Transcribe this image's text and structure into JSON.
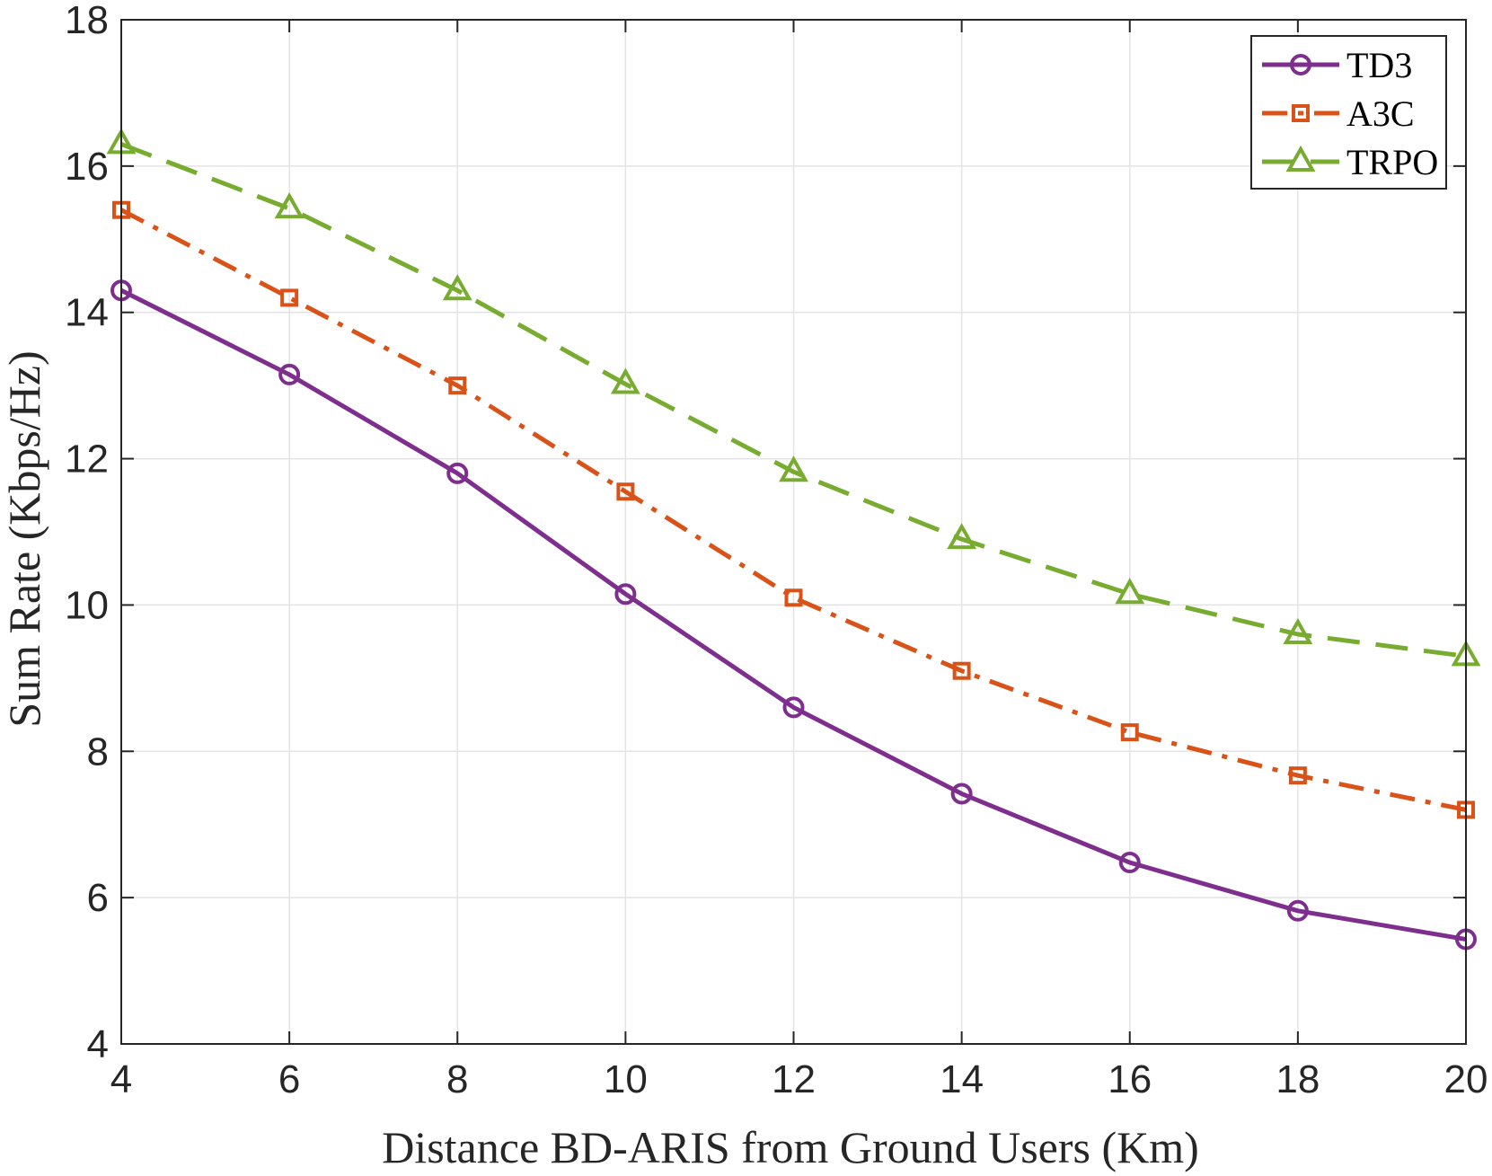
{
  "chart_data": {
    "type": "line",
    "title": "",
    "xlabel": "Distance BD-ARIS  from Ground Users (Km)",
    "ylabel": "Sum Rate (Kbps/Hz)",
    "xlim": [
      4,
      20
    ],
    "ylim": [
      4,
      18
    ],
    "xticks": [
      4,
      6,
      8,
      10,
      12,
      14,
      16,
      18,
      20
    ],
    "yticks": [
      4,
      6,
      8,
      10,
      12,
      14,
      16,
      18
    ],
    "grid": true,
    "legend_position": "top-right",
    "x": [
      4,
      6,
      8,
      10,
      12,
      14,
      16,
      18,
      20
    ],
    "series": [
      {
        "name": "TD3",
        "color": "#7E2F8E",
        "marker": "circle",
        "dash": "solid",
        "values": [
          14.3,
          13.15,
          11.8,
          10.15,
          8.6,
          7.42,
          6.48,
          5.82,
          5.43
        ]
      },
      {
        "name": "A3C",
        "color": "#D95319",
        "marker": "square",
        "dash": "dashdot",
        "values": [
          15.4,
          14.2,
          13.0,
          11.55,
          10.1,
          9.1,
          8.26,
          7.67,
          7.2
        ]
      },
      {
        "name": "TRPO",
        "color": "#77AC30",
        "marker": "triangle",
        "dash": "dashed",
        "values": [
          16.3,
          15.42,
          14.3,
          13.02,
          11.82,
          10.9,
          10.15,
          9.6,
          9.3
        ]
      }
    ]
  }
}
